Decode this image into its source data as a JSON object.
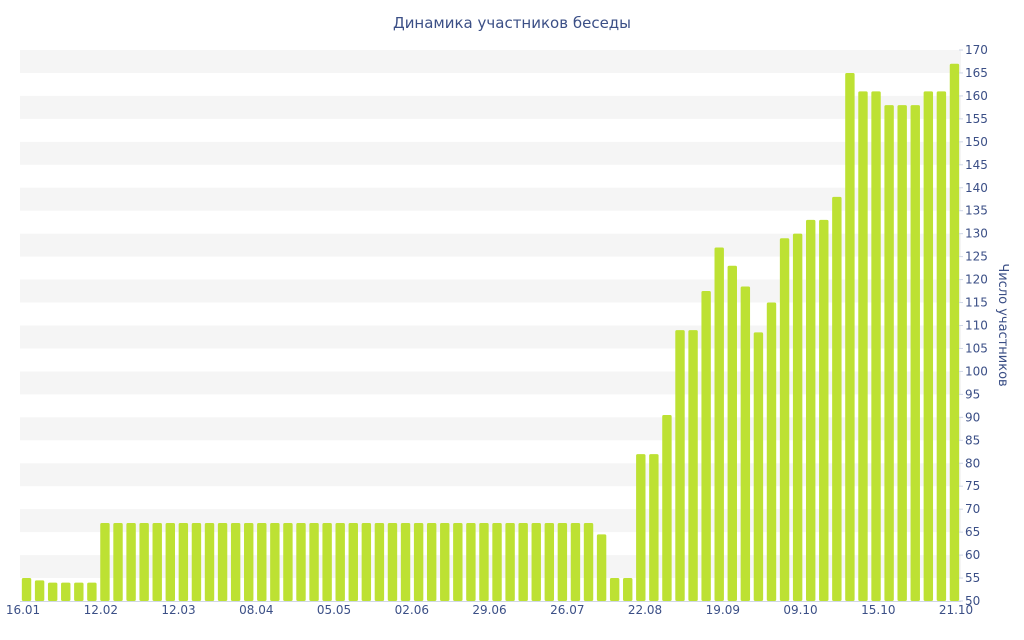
{
  "chart_data": {
    "type": "bar",
    "title": "Динамика участников беседы",
    "ylabel": "Число участников",
    "xlabel": "",
    "ylim": [
      50,
      170
    ],
    "y_tick_step": 5,
    "y_axis_side": "right",
    "grid": "alternating-bands",
    "bar_color": "#bde133",
    "x_tick_labels": [
      "16.01",
      "12.02",
      "12.03",
      "08.04",
      "05.05",
      "02.06",
      "29.06",
      "26.07",
      "22.08",
      "19.09",
      "09.10",
      "15.10",
      "21.10"
    ],
    "values": [
      55,
      54.5,
      54,
      54,
      54,
      54,
      67,
      67,
      67,
      67,
      67,
      67,
      67,
      67,
      67,
      67,
      67,
      67,
      67,
      67,
      67,
      67,
      67,
      67,
      67,
      67,
      67,
      67,
      67,
      67,
      67,
      67,
      67,
      67,
      67,
      67,
      67,
      67,
      67,
      67,
      67,
      67,
      67,
      67,
      64.5,
      55,
      55,
      82,
      82,
      90.5,
      109,
      109,
      117.5,
      127,
      123,
      118.5,
      108.5,
      115,
      129,
      130,
      133,
      133,
      138,
      165,
      161,
      161,
      158,
      158,
      158,
      161,
      161,
      167
    ]
  }
}
